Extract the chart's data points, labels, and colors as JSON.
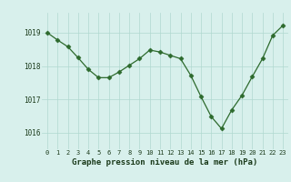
{
  "x": [
    0,
    1,
    2,
    3,
    4,
    5,
    6,
    7,
    8,
    9,
    10,
    11,
    12,
    13,
    14,
    15,
    16,
    17,
    18,
    19,
    20,
    21,
    22,
    23
  ],
  "y": [
    1019.0,
    1018.78,
    1018.58,
    1018.25,
    1017.9,
    1017.65,
    1017.65,
    1017.82,
    1018.02,
    1018.22,
    1018.48,
    1018.42,
    1018.32,
    1018.22,
    1017.72,
    1017.08,
    1016.48,
    1016.12,
    1016.68,
    1017.12,
    1017.68,
    1018.22,
    1018.92,
    1019.22
  ],
  "line_color": "#2d6a2d",
  "marker": "D",
  "marker_size": 2.5,
  "bg_color": "#d8f0ec",
  "grid_color": "#b0d8d0",
  "title": "Graphe pression niveau de la mer (hPa)",
  "ylabel_ticks": [
    1016,
    1017,
    1018,
    1019
  ],
  "xlim": [
    -0.5,
    23.5
  ],
  "ylim": [
    1015.5,
    1019.6
  ],
  "xtick_labels": [
    "0",
    "1",
    "2",
    "3",
    "4",
    "5",
    "6",
    "7",
    "8",
    "9",
    "10",
    "11",
    "12",
    "13",
    "14",
    "15",
    "16",
    "17",
    "18",
    "19",
    "20",
    "21",
    "22",
    "23"
  ]
}
